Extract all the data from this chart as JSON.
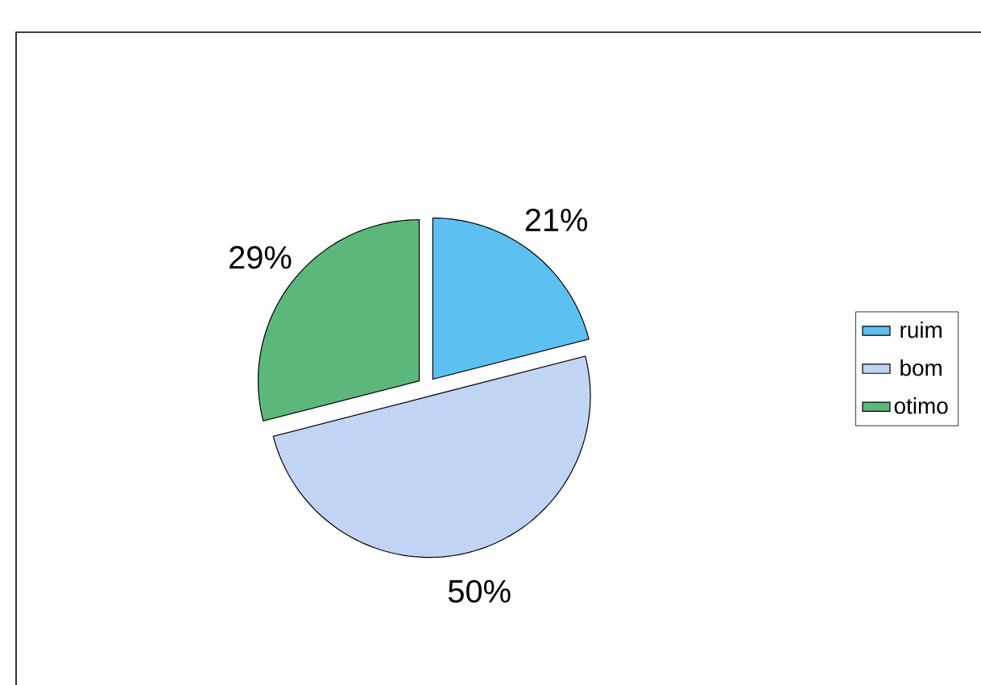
{
  "chart_data": {
    "type": "pie",
    "categories": [
      "ruim",
      "bom",
      "otimo"
    ],
    "values": [
      21,
      50,
      29
    ],
    "colors": [
      "#5cc0f0",
      "#c2d4f4",
      "#5cb87a"
    ],
    "value_labels": [
      "21%",
      "50%",
      "29%"
    ],
    "legend": "right"
  }
}
